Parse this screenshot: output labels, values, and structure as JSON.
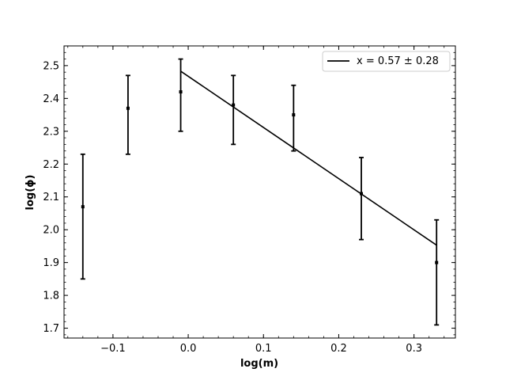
{
  "chart_data": {
    "type": "scatter",
    "title": "",
    "xlabel": "log(m)",
    "ylabel": "log(ϕ)",
    "xlim": [
      -0.165,
      0.355
    ],
    "ylim": [
      1.67,
      2.56
    ],
    "xticks": [
      -0.1,
      0.0,
      0.1,
      0.2,
      0.3
    ],
    "xtick_labels": [
      "−0.1",
      "0.0",
      "0.1",
      "0.2",
      "0.3"
    ],
    "yticks": [
      1.7,
      1.8,
      1.9,
      2.0,
      2.1,
      2.2,
      2.3,
      2.4,
      2.5
    ],
    "ytick_labels": [
      "1.7",
      "1.8",
      "1.9",
      "2.0",
      "2.1",
      "2.2",
      "2.3",
      "2.4",
      "2.5"
    ],
    "grid": false,
    "legend_position": "top-right",
    "series": [
      {
        "kind": "errorbar",
        "color": "#000000",
        "points": [
          {
            "x": -0.14,
            "y": 2.07,
            "ylo": 1.85,
            "yhi": 2.23
          },
          {
            "x": -0.08,
            "y": 2.37,
            "ylo": 2.23,
            "yhi": 2.47
          },
          {
            "x": -0.01,
            "y": 2.42,
            "ylo": 2.3,
            "yhi": 2.52
          },
          {
            "x": 0.06,
            "y": 2.38,
            "ylo": 2.26,
            "yhi": 2.47
          },
          {
            "x": 0.14,
            "y": 2.35,
            "ylo": 2.24,
            "yhi": 2.44
          },
          {
            "x": 0.23,
            "y": 2.11,
            "ylo": 1.97,
            "yhi": 2.22
          },
          {
            "x": 0.33,
            "y": 1.9,
            "ylo": 1.71,
            "yhi": 2.03
          }
        ]
      },
      {
        "kind": "line",
        "name": "x = 0.57 ± 0.28",
        "color": "#000000",
        "x": [
          -0.01,
          0.33
        ],
        "y": [
          2.483,
          1.953
        ]
      }
    ]
  }
}
